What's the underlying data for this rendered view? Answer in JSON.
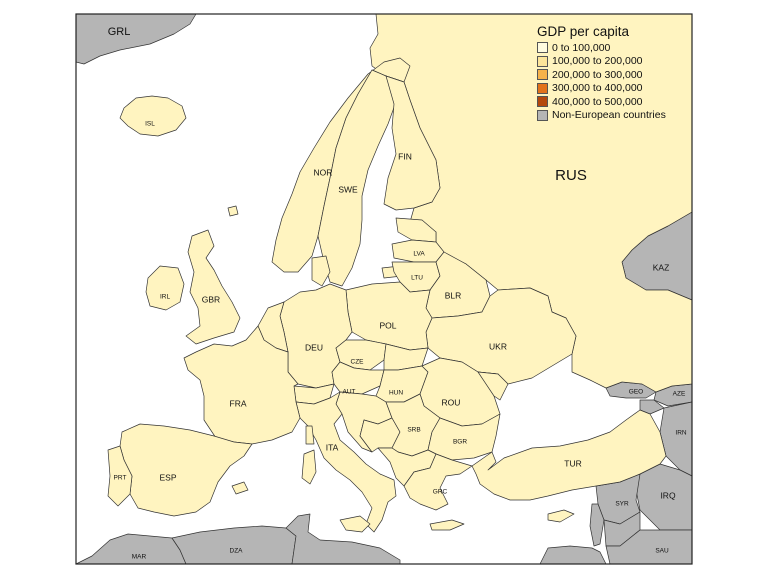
{
  "legend": {
    "title": "GDP per capita",
    "items": [
      {
        "label": "0 to 100,000",
        "color": "#fffbe0"
      },
      {
        "label": "100,000 to 200,000",
        "color": "#fde59a"
      },
      {
        "label": "200,000 to 300,000",
        "color": "#f6b24a"
      },
      {
        "label": "300,000 to 400,000",
        "color": "#e2721b"
      },
      {
        "label": "400,000 to 500,000",
        "color": "#b4480c"
      },
      {
        "label": "Non-European countries",
        "color": "#b5b5b5"
      }
    ]
  },
  "countries": {
    "rus": "RUS",
    "grl": "GRL",
    "isl": "ISL",
    "nor": "NOR",
    "swe": "SWE",
    "fin": "FIN",
    "gbr": "GBR",
    "irl": "IRL",
    "deu": "DEU",
    "pol": "POL",
    "fra": "FRA",
    "esp": "ESP",
    "prt": "PRT",
    "ita": "ITA",
    "ukr": "UKR",
    "blr": "BLR",
    "ltu": "LTU",
    "lva": "LVA",
    "cze": "CZE",
    "aut": "AUT",
    "hun": "HUN",
    "rou": "ROU",
    "srb": "SRB",
    "bgr": "BGR",
    "grc": "GRC",
    "tur": "TUR",
    "kaz": "KAZ",
    "geo": "GEO",
    "aze": "AZE",
    "irn": "IRN",
    "irq": "IRQ",
    "syr": "SYR",
    "sau": "SAU",
    "mar": "MAR",
    "dza": "DZA"
  },
  "colors": {
    "european_fill": "#fff4c0",
    "non_european_fill": "#b5b5b5",
    "border": "#333333"
  }
}
